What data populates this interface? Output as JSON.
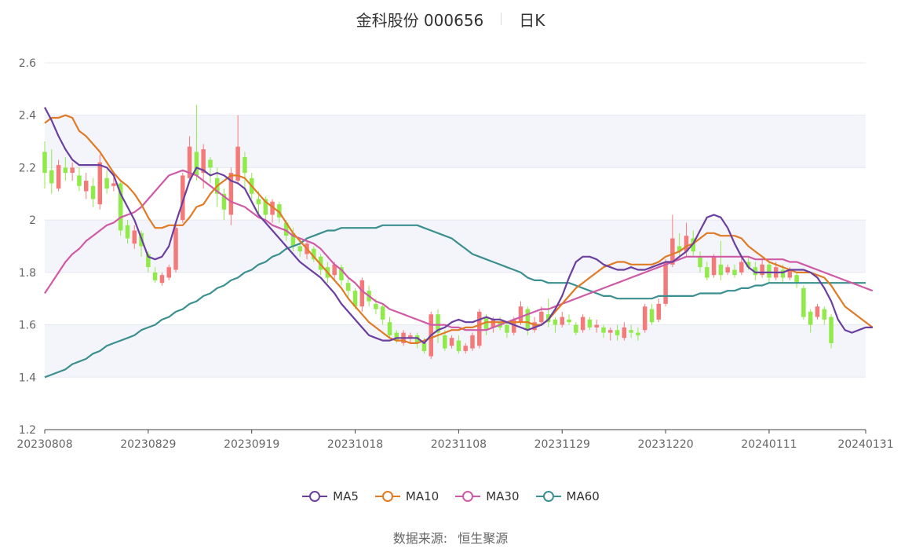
{
  "header": {
    "stock": "金科股份 000656",
    "period": "日K"
  },
  "source": {
    "label": "数据来源:",
    "value": "恒生聚源"
  },
  "colors": {
    "up": "#f47a7a",
    "down": "#90ea4a",
    "MA5": "#6b3fa0",
    "MA10": "#e07a24",
    "MA30": "#cf5aa6",
    "MA60": "#3b8f8f",
    "grid_band": "#f4f5fa"
  },
  "chart_data": {
    "type": "candlestick",
    "ylim": [
      1.2,
      2.6
    ],
    "yticks": [
      "1.2",
      "1.4",
      "1.6",
      "1.8",
      "2",
      "2.2",
      "2.4",
      "2.6"
    ],
    "xtick_labels": [
      "20230808",
      "20230829",
      "20230919",
      "20231018",
      "20231108",
      "20231129",
      "20231220",
      "20240111",
      "20240131"
    ],
    "xtick_index": [
      0,
      15,
      30,
      45,
      60,
      75,
      90,
      105,
      119
    ],
    "num_days": 120,
    "candles": [
      [
        2.26,
        2.18,
        2.3,
        2.12
      ],
      [
        2.19,
        2.14,
        2.27,
        2.1
      ],
      [
        2.12,
        2.21,
        2.23,
        2.11
      ],
      [
        2.2,
        2.18,
        2.24,
        2.15
      ],
      [
        2.18,
        2.2,
        2.22,
        2.15
      ],
      [
        2.17,
        2.13,
        2.2,
        2.11
      ],
      [
        2.11,
        2.15,
        2.18,
        2.08
      ],
      [
        2.13,
        2.08,
        2.16,
        2.05
      ],
      [
        2.06,
        2.22,
        2.25,
        2.04
      ],
      [
        2.16,
        2.12,
        2.19,
        2.1
      ],
      [
        2.13,
        2.14,
        2.17,
        2.11
      ],
      [
        2.14,
        1.96,
        2.15,
        1.94
      ],
      [
        1.98,
        1.93,
        2.0,
        1.91
      ],
      [
        1.91,
        1.96,
        1.98,
        1.89
      ],
      [
        1.95,
        1.9,
        1.96,
        1.86
      ],
      [
        1.87,
        1.82,
        1.88,
        1.8
      ],
      [
        1.8,
        1.77,
        1.82,
        1.76
      ],
      [
        1.76,
        1.79,
        1.8,
        1.75
      ],
      [
        1.78,
        1.82,
        1.83,
        1.77
      ],
      [
        1.81,
        1.97,
        1.99,
        1.8
      ],
      [
        2.0,
        2.17,
        2.18,
        1.99
      ],
      [
        2.16,
        2.28,
        2.32,
        2.15
      ],
      [
        2.26,
        2.17,
        2.44,
        2.15
      ],
      [
        2.18,
        2.27,
        2.29,
        2.12
      ],
      [
        2.23,
        2.2,
        2.24,
        2.14
      ],
      [
        2.16,
        2.1,
        2.2,
        2.05
      ],
      [
        2.1,
        2.04,
        2.12,
        2.0
      ],
      [
        2.02,
        2.18,
        2.2,
        1.98
      ],
      [
        2.15,
        2.28,
        2.4,
        2.14
      ],
      [
        2.24,
        2.18,
        2.26,
        2.12
      ],
      [
        2.16,
        2.1,
        2.18,
        2.08
      ],
      [
        2.08,
        2.06,
        2.11,
        2.02
      ],
      [
        2.08,
        2.02,
        2.09,
        2.0
      ],
      [
        2.02,
        2.07,
        2.08,
        1.99
      ],
      [
        2.06,
        2.01,
        2.07,
        1.99
      ],
      [
        1.99,
        1.94,
        2.0,
        1.92
      ],
      [
        1.95,
        1.9,
        1.97,
        1.88
      ],
      [
        1.9,
        1.88,
        1.93,
        1.86
      ],
      [
        1.87,
        1.91,
        1.92,
        1.85
      ],
      [
        1.89,
        1.85,
        1.9,
        1.84
      ],
      [
        1.86,
        1.81,
        1.87,
        1.79
      ],
      [
        1.82,
        1.78,
        1.84,
        1.76
      ],
      [
        1.79,
        1.83,
        1.84,
        1.77
      ],
      [
        1.82,
        1.77,
        1.83,
        1.75
      ],
      [
        1.76,
        1.73,
        1.78,
        1.7
      ],
      [
        1.73,
        1.67,
        1.74,
        1.66
      ],
      [
        1.67,
        1.77,
        1.78,
        1.65
      ],
      [
        1.73,
        1.69,
        1.75,
        1.67
      ],
      [
        1.68,
        1.66,
        1.7,
        1.64
      ],
      [
        1.67,
        1.62,
        1.68,
        1.6
      ],
      [
        1.61,
        1.56,
        1.63,
        1.55
      ],
      [
        1.57,
        1.54,
        1.58,
        1.53
      ],
      [
        1.53,
        1.57,
        1.58,
        1.52
      ],
      [
        1.55,
        1.56,
        1.57,
        1.53
      ],
      [
        1.56,
        1.53,
        1.57,
        1.51
      ],
      [
        1.53,
        1.5,
        1.55,
        1.49
      ],
      [
        1.48,
        1.64,
        1.65,
        1.47
      ],
      [
        1.64,
        1.57,
        1.66,
        1.53
      ],
      [
        1.56,
        1.51,
        1.58,
        1.5
      ],
      [
        1.52,
        1.55,
        1.56,
        1.51
      ],
      [
        1.54,
        1.5,
        1.56,
        1.49
      ],
      [
        1.5,
        1.52,
        1.53,
        1.49
      ],
      [
        1.51,
        1.56,
        1.57,
        1.5
      ],
      [
        1.52,
        1.65,
        1.66,
        1.51
      ],
      [
        1.63,
        1.58,
        1.64,
        1.56
      ],
      [
        1.59,
        1.62,
        1.63,
        1.57
      ],
      [
        1.61,
        1.59,
        1.63,
        1.58
      ],
      [
        1.6,
        1.57,
        1.61,
        1.55
      ],
      [
        1.57,
        1.62,
        1.63,
        1.56
      ],
      [
        1.61,
        1.67,
        1.69,
        1.6
      ],
      [
        1.66,
        1.58,
        1.67,
        1.56
      ],
      [
        1.58,
        1.61,
        1.63,
        1.57
      ],
      [
        1.61,
        1.65,
        1.67,
        1.6
      ],
      [
        1.64,
        1.61,
        1.7,
        1.59
      ],
      [
        1.62,
        1.6,
        1.63,
        1.57
      ],
      [
        1.6,
        1.63,
        1.65,
        1.59
      ],
      [
        1.62,
        1.61,
        1.64,
        1.6
      ],
      [
        1.6,
        1.57,
        1.61,
        1.56
      ],
      [
        1.58,
        1.63,
        1.64,
        1.57
      ],
      [
        1.62,
        1.59,
        1.63,
        1.58
      ],
      [
        1.59,
        1.6,
        1.62,
        1.57
      ],
      [
        1.59,
        1.57,
        1.6,
        1.55
      ],
      [
        1.57,
        1.58,
        1.59,
        1.54
      ],
      [
        1.58,
        1.56,
        1.6,
        1.54
      ],
      [
        1.55,
        1.59,
        1.61,
        1.54
      ],
      [
        1.58,
        1.57,
        1.6,
        1.55
      ],
      [
        1.57,
        1.56,
        1.59,
        1.54
      ],
      [
        1.58,
        1.67,
        1.68,
        1.57
      ],
      [
        1.66,
        1.61,
        1.68,
        1.6
      ],
      [
        1.62,
        1.68,
        1.7,
        1.61
      ],
      [
        1.68,
        1.84,
        1.85,
        1.67
      ],
      [
        1.83,
        1.93,
        2.02,
        1.82
      ],
      [
        1.9,
        1.88,
        1.95,
        1.86
      ],
      [
        1.88,
        1.94,
        1.99,
        1.86
      ],
      [
        1.93,
        1.88,
        1.96,
        1.86
      ],
      [
        1.86,
        1.82,
        1.88,
        1.8
      ],
      [
        1.82,
        1.78,
        1.84,
        1.77
      ],
      [
        1.79,
        1.86,
        1.87,
        1.78
      ],
      [
        1.83,
        1.79,
        1.92,
        1.77
      ],
      [
        1.8,
        1.82,
        1.83,
        1.79
      ],
      [
        1.81,
        1.79,
        1.83,
        1.78
      ],
      [
        1.8,
        1.84,
        1.86,
        1.79
      ],
      [
        1.84,
        1.82,
        1.86,
        1.81
      ],
      [
        1.82,
        1.79,
        1.84,
        1.77
      ],
      [
        1.79,
        1.83,
        1.85,
        1.78
      ],
      [
        1.83,
        1.78,
        1.84,
        1.76
      ],
      [
        1.78,
        1.82,
        1.84,
        1.77
      ],
      [
        1.81,
        1.78,
        1.83,
        1.76
      ],
      [
        1.78,
        1.81,
        1.82,
        1.77
      ],
      [
        1.79,
        1.76,
        1.8,
        1.74
      ],
      [
        1.74,
        1.63,
        1.75,
        1.62
      ],
      [
        1.65,
        1.6,
        1.66,
        1.57
      ],
      [
        1.63,
        1.67,
        1.68,
        1.62
      ],
      [
        1.66,
        1.62,
        1.67,
        1.6
      ],
      [
        1.63,
        1.53,
        1.64,
        1.51
      ]
    ],
    "series": [
      {
        "name": "MA5",
        "values": [
          2.43,
          2.38,
          2.32,
          2.27,
          2.23,
          2.21,
          2.21,
          2.21,
          2.21,
          2.2,
          2.17,
          2.1,
          2.05,
          2.0,
          1.93,
          1.86,
          1.85,
          1.86,
          1.9,
          1.99,
          2.07,
          2.15,
          2.2,
          2.19,
          2.17,
          2.18,
          2.17,
          2.15,
          2.14,
          2.12,
          2.07,
          2.02,
          1.99,
          1.96,
          1.93,
          1.9,
          1.87,
          1.84,
          1.82,
          1.8,
          1.78,
          1.75,
          1.72,
          1.68,
          1.65,
          1.62,
          1.59,
          1.56,
          1.55,
          1.54,
          1.54,
          1.55,
          1.55,
          1.55,
          1.55,
          1.53,
          1.56,
          1.58,
          1.59,
          1.61,
          1.62,
          1.61,
          1.61,
          1.62,
          1.63,
          1.62,
          1.62,
          1.61,
          1.6,
          1.59,
          1.58,
          1.59,
          1.6,
          1.62,
          1.66,
          1.71,
          1.78,
          1.84,
          1.86,
          1.86,
          1.85,
          1.83,
          1.82,
          1.81,
          1.81,
          1.82,
          1.81,
          1.81,
          1.82,
          1.83,
          1.84,
          1.84,
          1.86,
          1.88,
          1.91,
          1.96,
          2.01,
          2.02,
          2.01,
          1.97,
          1.91,
          1.86,
          1.82,
          1.8,
          1.8,
          1.8,
          1.8,
          1.8,
          1.81,
          1.81,
          1.81,
          1.8,
          1.78,
          1.74,
          1.69,
          1.62,
          1.58,
          1.57,
          1.58,
          1.59,
          1.59
        ]
      },
      {
        "name": "MA10",
        "values": [
          2.37,
          2.39,
          2.39,
          2.4,
          2.39,
          2.34,
          2.32,
          2.29,
          2.26,
          2.22,
          2.18,
          2.15,
          2.13,
          2.1,
          2.06,
          2.01,
          1.97,
          1.97,
          1.98,
          1.98,
          1.98,
          2.01,
          2.05,
          2.06,
          2.1,
          2.13,
          2.15,
          2.17,
          2.17,
          2.16,
          2.13,
          2.1,
          2.07,
          2.05,
          2.03,
          1.99,
          1.95,
          1.92,
          1.89,
          1.86,
          1.83,
          1.8,
          1.77,
          1.74,
          1.7,
          1.67,
          1.64,
          1.61,
          1.59,
          1.57,
          1.55,
          1.54,
          1.54,
          1.53,
          1.53,
          1.54,
          1.55,
          1.56,
          1.57,
          1.58,
          1.58,
          1.59,
          1.59,
          1.6,
          1.61,
          1.61,
          1.61,
          1.61,
          1.61,
          1.61,
          1.61,
          1.6,
          1.6,
          1.62,
          1.65,
          1.68,
          1.71,
          1.74,
          1.76,
          1.78,
          1.8,
          1.82,
          1.83,
          1.84,
          1.84,
          1.83,
          1.83,
          1.83,
          1.83,
          1.84,
          1.86,
          1.87,
          1.88,
          1.9,
          1.91,
          1.93,
          1.95,
          1.95,
          1.94,
          1.94,
          1.94,
          1.93,
          1.9,
          1.88,
          1.86,
          1.84,
          1.83,
          1.82,
          1.81,
          1.8,
          1.8,
          1.8,
          1.79,
          1.78,
          1.75,
          1.71,
          1.67,
          1.65,
          1.63,
          1.61,
          1.59
        ]
      },
      {
        "name": "MA30",
        "values": [
          1.72,
          1.76,
          1.8,
          1.84,
          1.87,
          1.89,
          1.92,
          1.94,
          1.96,
          1.98,
          1.99,
          2.01,
          2.02,
          2.03,
          2.05,
          2.08,
          2.11,
          2.14,
          2.17,
          2.18,
          2.19,
          2.18,
          2.17,
          2.15,
          2.13,
          2.11,
          2.09,
          2.07,
          2.06,
          2.05,
          2.03,
          2.01,
          2.0,
          1.98,
          1.97,
          1.96,
          1.94,
          1.93,
          1.92,
          1.91,
          1.89,
          1.86,
          1.83,
          1.81,
          1.78,
          1.76,
          1.73,
          1.71,
          1.69,
          1.68,
          1.66,
          1.65,
          1.64,
          1.63,
          1.62,
          1.61,
          1.6,
          1.6,
          1.6,
          1.59,
          1.59,
          1.58,
          1.58,
          1.58,
          1.58,
          1.59,
          1.6,
          1.61,
          1.62,
          1.63,
          1.64,
          1.65,
          1.66,
          1.66,
          1.67,
          1.68,
          1.69,
          1.7,
          1.71,
          1.72,
          1.73,
          1.74,
          1.75,
          1.76,
          1.77,
          1.78,
          1.79,
          1.8,
          1.81,
          1.82,
          1.83,
          1.84,
          1.85,
          1.86,
          1.86,
          1.86,
          1.86,
          1.86,
          1.86,
          1.86,
          1.86,
          1.86,
          1.86,
          1.85,
          1.85,
          1.85,
          1.85,
          1.85,
          1.84,
          1.84,
          1.83,
          1.82,
          1.81,
          1.8,
          1.79,
          1.78,
          1.77,
          1.76,
          1.75,
          1.74,
          1.73
        ]
      },
      {
        "name": "MA60",
        "values": [
          1.4,
          1.41,
          1.42,
          1.43,
          1.45,
          1.46,
          1.47,
          1.49,
          1.5,
          1.52,
          1.53,
          1.54,
          1.55,
          1.56,
          1.58,
          1.59,
          1.6,
          1.62,
          1.63,
          1.65,
          1.66,
          1.68,
          1.69,
          1.71,
          1.72,
          1.74,
          1.75,
          1.77,
          1.78,
          1.8,
          1.81,
          1.83,
          1.84,
          1.86,
          1.87,
          1.89,
          1.9,
          1.91,
          1.93,
          1.94,
          1.95,
          1.96,
          1.96,
          1.97,
          1.97,
          1.97,
          1.97,
          1.97,
          1.97,
          1.98,
          1.98,
          1.98,
          1.98,
          1.98,
          1.98,
          1.97,
          1.96,
          1.95,
          1.94,
          1.93,
          1.91,
          1.89,
          1.87,
          1.86,
          1.85,
          1.84,
          1.83,
          1.82,
          1.81,
          1.8,
          1.78,
          1.77,
          1.77,
          1.76,
          1.76,
          1.76,
          1.76,
          1.75,
          1.74,
          1.73,
          1.72,
          1.71,
          1.71,
          1.7,
          1.7,
          1.7,
          1.7,
          1.7,
          1.7,
          1.71,
          1.71,
          1.71,
          1.71,
          1.71,
          1.71,
          1.72,
          1.72,
          1.72,
          1.72,
          1.73,
          1.73,
          1.74,
          1.74,
          1.75,
          1.75,
          1.76,
          1.76,
          1.76,
          1.76,
          1.76,
          1.76,
          1.76,
          1.76,
          1.76,
          1.76,
          1.76,
          1.76,
          1.76,
          1.76,
          1.76
        ]
      }
    ],
    "legend": [
      "MA5",
      "MA10",
      "MA30",
      "MA60"
    ],
    "legend_position": "bottom-center",
    "grid": true
  }
}
